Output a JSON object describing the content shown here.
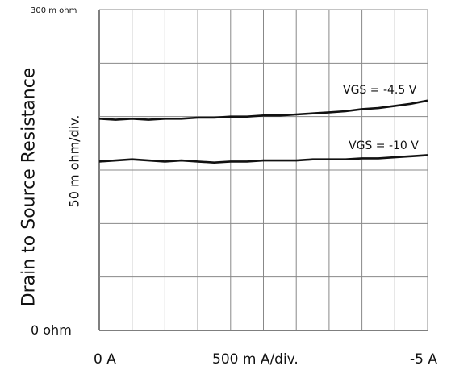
{
  "chart_data": {
    "type": "line",
    "ylabel": "Drain to Source Resistance",
    "y_scale_label": "50 m ohm/div.",
    "x_scale_label": "500 m A/div.",
    "y_top_label": "300 m ohm",
    "y_bottom_label": "0  ohm",
    "x_left_label": "0  A",
    "x_right_label": "-5  A",
    "xlim": [
      0,
      -5
    ],
    "ylim": [
      0,
      0.3
    ],
    "x_divisions": 10,
    "y_divisions": 6,
    "grid": true,
    "series": [
      {
        "name": "VGS = -4.5 V",
        "x": [
          0,
          -0.25,
          -0.5,
          -0.75,
          -1.0,
          -1.25,
          -1.5,
          -1.75,
          -2.0,
          -2.25,
          -2.5,
          -2.75,
          -3.0,
          -3.25,
          -3.5,
          -3.75,
          -4.0,
          -4.25,
          -4.5,
          -4.75,
          -5.0
        ],
        "values": [
          0.198,
          0.197,
          0.198,
          0.197,
          0.198,
          0.198,
          0.199,
          0.199,
          0.2,
          0.2,
          0.201,
          0.201,
          0.202,
          0.203,
          0.204,
          0.205,
          0.207,
          0.208,
          0.21,
          0.212,
          0.215
        ]
      },
      {
        "name": "VGS = -10 V",
        "x": [
          0,
          -0.25,
          -0.5,
          -0.75,
          -1.0,
          -1.25,
          -1.5,
          -1.75,
          -2.0,
          -2.25,
          -2.5,
          -2.75,
          -3.0,
          -3.25,
          -3.5,
          -3.75,
          -4.0,
          -4.25,
          -4.5,
          -4.75,
          -5.0
        ],
        "values": [
          0.158,
          0.159,
          0.16,
          0.159,
          0.158,
          0.159,
          0.158,
          0.157,
          0.158,
          0.158,
          0.159,
          0.159,
          0.159,
          0.16,
          0.16,
          0.16,
          0.161,
          0.161,
          0.162,
          0.163,
          0.164
        ]
      }
    ]
  }
}
